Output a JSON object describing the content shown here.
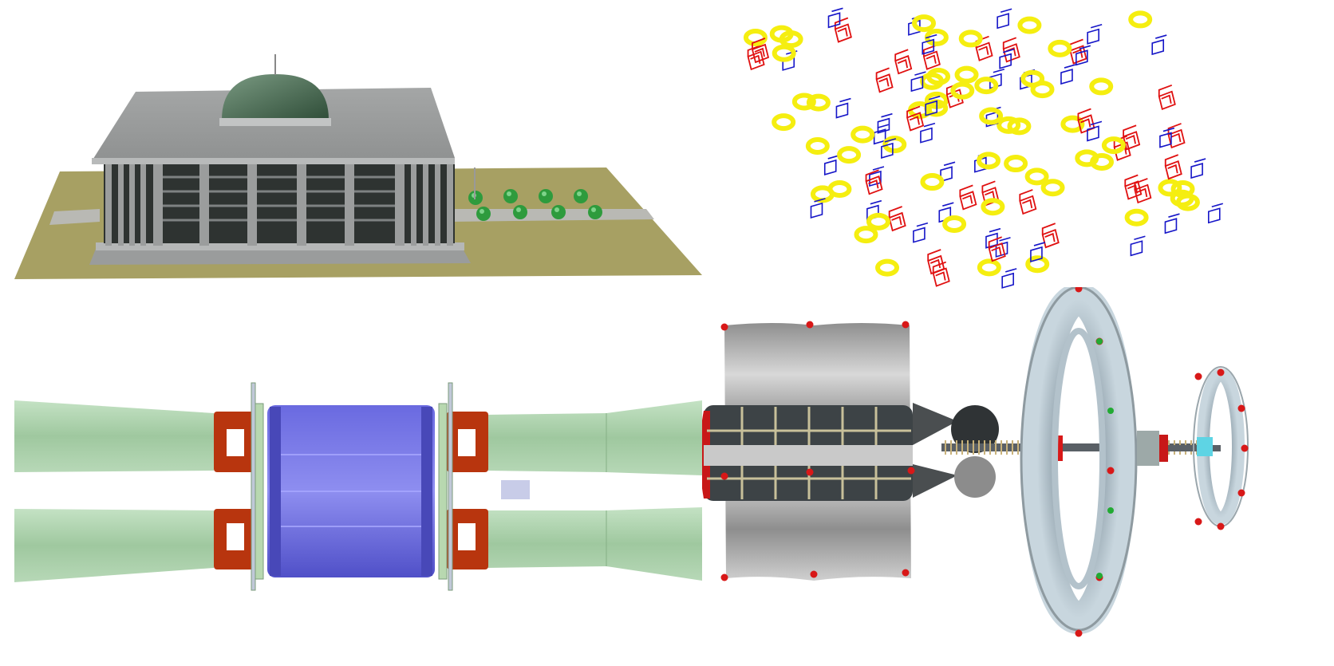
{
  "panels": [
    {
      "id": "building-scene",
      "description_name": "domed-building-model"
    },
    {
      "id": "wireframe-scene",
      "description_name": "wireframe-parts-scatter"
    },
    {
      "id": "beampipe-scene",
      "description_name": "cylindrical-detector-section"
    },
    {
      "id": "spacecraft-scene",
      "description_name": "space-station-assembly"
    }
  ],
  "colors": {
    "ground": "#a7a063",
    "building": "#a9abab",
    "dome": "#4f7058",
    "tree": "#2e9b3d",
    "wire_red": "#e01010",
    "wire_blue": "#1515c8",
    "wire_yellow": "#f5ee10",
    "pipe_green": "#a7cfa7",
    "flange_red": "#b8350e",
    "barrel_blue": "#5b5bd8",
    "metal": "#9c9c9c",
    "dark_panel": "#3d4346",
    "marker": "#d81818"
  },
  "icons": []
}
